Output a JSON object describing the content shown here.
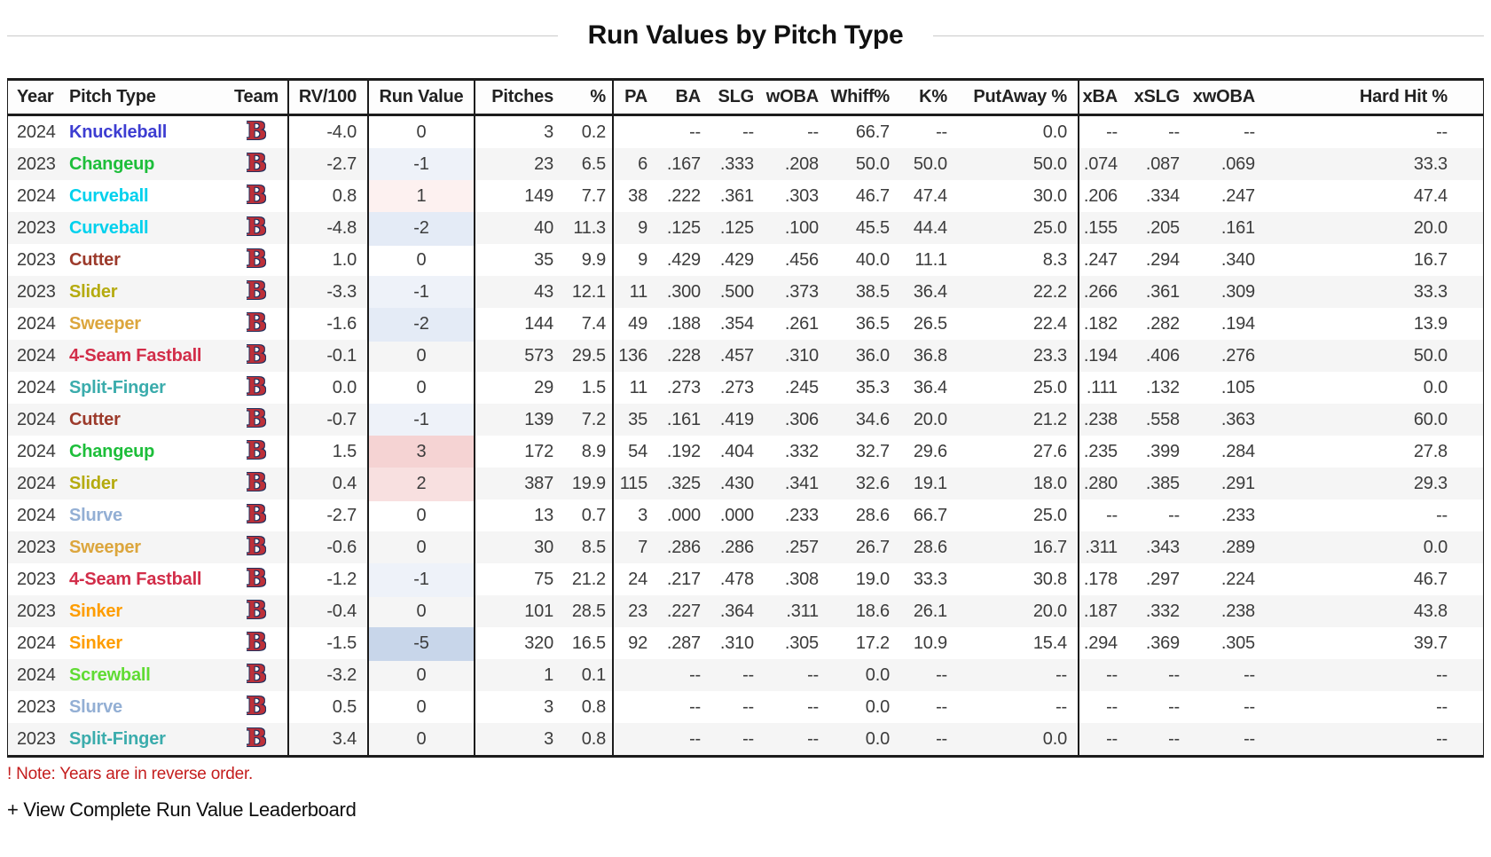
{
  "title": "Run Values by Pitch Type",
  "note": "! Note: Years are in reverse order.",
  "view_link": "+ View Complete Run Value Leaderboard",
  "team": {
    "name": "Boston Red Sox",
    "logo_letter": "B"
  },
  "pitch_colors": {
    "Knuckleball": "#3d3dd1",
    "Changeup": "#1dbe3a",
    "Curveball": "#00d1ed",
    "Cutter": "#9c3a2b",
    "Slider": "#b5ab0f",
    "Sweeper": "#dca63d",
    "4-Seam Fastball": "#d22d49",
    "Split-Finger": "#3bacac",
    "Slurve": "#93afd4",
    "Sinker": "#fe9d00",
    "Screwball": "#60db33"
  },
  "run_value_colors": {
    "-5": "#c8d6ea",
    "-2": "#e4ebf6",
    "-1": "#eef2f9",
    "0": "transparent",
    "1": "#fdf1f0",
    "2": "#f8e0e0",
    "3": "#f5d3d3"
  },
  "table": {
    "headers": [
      "Year",
      "Pitch Type",
      "Team",
      "RV/100",
      "Run Value",
      "Pitches",
      "%",
      "PA",
      "BA",
      "SLG",
      "wOBA",
      "Whiff%",
      "K%",
      "PutAway %",
      "xBA",
      "xSLG",
      "xwOBA",
      "Hard Hit %"
    ],
    "rows": [
      {
        "year": "2024",
        "pitch": "Knuckleball",
        "rv100": "-4.0",
        "run_value": "0",
        "pitches": "3",
        "pct": "0.2",
        "pa": "",
        "ba": "--",
        "slg": "--",
        "woba": "--",
        "whiff": "66.7",
        "k": "--",
        "putaway": "0.0",
        "xba": "--",
        "xslg": "--",
        "xwoba": "--",
        "hardhit": "--"
      },
      {
        "year": "2023",
        "pitch": "Changeup",
        "rv100": "-2.7",
        "run_value": "-1",
        "pitches": "23",
        "pct": "6.5",
        "pa": "6",
        "ba": ".167",
        "slg": ".333",
        "woba": ".208",
        "whiff": "50.0",
        "k": "50.0",
        "putaway": "50.0",
        "xba": ".074",
        "xslg": ".087",
        "xwoba": ".069",
        "hardhit": "33.3"
      },
      {
        "year": "2024",
        "pitch": "Curveball",
        "rv100": "0.8",
        "run_value": "1",
        "pitches": "149",
        "pct": "7.7",
        "pa": "38",
        "ba": ".222",
        "slg": ".361",
        "woba": ".303",
        "whiff": "46.7",
        "k": "47.4",
        "putaway": "30.0",
        "xba": ".206",
        "xslg": ".334",
        "xwoba": ".247",
        "hardhit": "47.4"
      },
      {
        "year": "2023",
        "pitch": "Curveball",
        "rv100": "-4.8",
        "run_value": "-2",
        "pitches": "40",
        "pct": "11.3",
        "pa": "9",
        "ba": ".125",
        "slg": ".125",
        "woba": ".100",
        "whiff": "45.5",
        "k": "44.4",
        "putaway": "25.0",
        "xba": ".155",
        "xslg": ".205",
        "xwoba": ".161",
        "hardhit": "20.0"
      },
      {
        "year": "2023",
        "pitch": "Cutter",
        "rv100": "1.0",
        "run_value": "0",
        "pitches": "35",
        "pct": "9.9",
        "pa": "9",
        "ba": ".429",
        "slg": ".429",
        "woba": ".456",
        "whiff": "40.0",
        "k": "11.1",
        "putaway": "8.3",
        "xba": ".247",
        "xslg": ".294",
        "xwoba": ".340",
        "hardhit": "16.7"
      },
      {
        "year": "2023",
        "pitch": "Slider",
        "rv100": "-3.3",
        "run_value": "-1",
        "pitches": "43",
        "pct": "12.1",
        "pa": "11",
        "ba": ".300",
        "slg": ".500",
        "woba": ".373",
        "whiff": "38.5",
        "k": "36.4",
        "putaway": "22.2",
        "xba": ".266",
        "xslg": ".361",
        "xwoba": ".309",
        "hardhit": "33.3"
      },
      {
        "year": "2024",
        "pitch": "Sweeper",
        "rv100": "-1.6",
        "run_value": "-2",
        "pitches": "144",
        "pct": "7.4",
        "pa": "49",
        "ba": ".188",
        "slg": ".354",
        "woba": ".261",
        "whiff": "36.5",
        "k": "26.5",
        "putaway": "22.4",
        "xba": ".182",
        "xslg": ".282",
        "xwoba": ".194",
        "hardhit": "13.9"
      },
      {
        "year": "2024",
        "pitch": "4-Seam Fastball",
        "rv100": "-0.1",
        "run_value": "0",
        "pitches": "573",
        "pct": "29.5",
        "pa": "136",
        "ba": ".228",
        "slg": ".457",
        "woba": ".310",
        "whiff": "36.0",
        "k": "36.8",
        "putaway": "23.3",
        "xba": ".194",
        "xslg": ".406",
        "xwoba": ".276",
        "hardhit": "50.0"
      },
      {
        "year": "2024",
        "pitch": "Split-Finger",
        "rv100": "0.0",
        "run_value": "0",
        "pitches": "29",
        "pct": "1.5",
        "pa": "11",
        "ba": ".273",
        "slg": ".273",
        "woba": ".245",
        "whiff": "35.3",
        "k": "36.4",
        "putaway": "25.0",
        "xba": ".111",
        "xslg": ".132",
        "xwoba": ".105",
        "hardhit": "0.0"
      },
      {
        "year": "2024",
        "pitch": "Cutter",
        "rv100": "-0.7",
        "run_value": "-1",
        "pitches": "139",
        "pct": "7.2",
        "pa": "35",
        "ba": ".161",
        "slg": ".419",
        "woba": ".306",
        "whiff": "34.6",
        "k": "20.0",
        "putaway": "21.2",
        "xba": ".238",
        "xslg": ".558",
        "xwoba": ".363",
        "hardhit": "60.0"
      },
      {
        "year": "2024",
        "pitch": "Changeup",
        "rv100": "1.5",
        "run_value": "3",
        "pitches": "172",
        "pct": "8.9",
        "pa": "54",
        "ba": ".192",
        "slg": ".404",
        "woba": ".332",
        "whiff": "32.7",
        "k": "29.6",
        "putaway": "27.6",
        "xba": ".235",
        "xslg": ".399",
        "xwoba": ".284",
        "hardhit": "27.8"
      },
      {
        "year": "2024",
        "pitch": "Slider",
        "rv100": "0.4",
        "run_value": "2",
        "pitches": "387",
        "pct": "19.9",
        "pa": "115",
        "ba": ".325",
        "slg": ".430",
        "woba": ".341",
        "whiff": "32.6",
        "k": "19.1",
        "putaway": "18.0",
        "xba": ".280",
        "xslg": ".385",
        "xwoba": ".291",
        "hardhit": "29.3"
      },
      {
        "year": "2024",
        "pitch": "Slurve",
        "rv100": "-2.7",
        "run_value": "0",
        "pitches": "13",
        "pct": "0.7",
        "pa": "3",
        "ba": ".000",
        "slg": ".000",
        "woba": ".233",
        "whiff": "28.6",
        "k": "66.7",
        "putaway": "25.0",
        "xba": "--",
        "xslg": "--",
        "xwoba": ".233",
        "hardhit": "--"
      },
      {
        "year": "2023",
        "pitch": "Sweeper",
        "rv100": "-0.6",
        "run_value": "0",
        "pitches": "30",
        "pct": "8.5",
        "pa": "7",
        "ba": ".286",
        "slg": ".286",
        "woba": ".257",
        "whiff": "26.7",
        "k": "28.6",
        "putaway": "16.7",
        "xba": ".311",
        "xslg": ".343",
        "xwoba": ".289",
        "hardhit": "0.0"
      },
      {
        "year": "2023",
        "pitch": "4-Seam Fastball",
        "rv100": "-1.2",
        "run_value": "-1",
        "pitches": "75",
        "pct": "21.2",
        "pa": "24",
        "ba": ".217",
        "slg": ".478",
        "woba": ".308",
        "whiff": "19.0",
        "k": "33.3",
        "putaway": "30.8",
        "xba": ".178",
        "xslg": ".297",
        "xwoba": ".224",
        "hardhit": "46.7"
      },
      {
        "year": "2023",
        "pitch": "Sinker",
        "rv100": "-0.4",
        "run_value": "0",
        "pitches": "101",
        "pct": "28.5",
        "pa": "23",
        "ba": ".227",
        "slg": ".364",
        "woba": ".311",
        "whiff": "18.6",
        "k": "26.1",
        "putaway": "20.0",
        "xba": ".187",
        "xslg": ".332",
        "xwoba": ".238",
        "hardhit": "43.8"
      },
      {
        "year": "2024",
        "pitch": "Sinker",
        "rv100": "-1.5",
        "run_value": "-5",
        "pitches": "320",
        "pct": "16.5",
        "pa": "92",
        "ba": ".287",
        "slg": ".310",
        "woba": ".305",
        "whiff": "17.2",
        "k": "10.9",
        "putaway": "15.4",
        "xba": ".294",
        "xslg": ".369",
        "xwoba": ".305",
        "hardhit": "39.7"
      },
      {
        "year": "2024",
        "pitch": "Screwball",
        "rv100": "-3.2",
        "run_value": "0",
        "pitches": "1",
        "pct": "0.1",
        "pa": "",
        "ba": "--",
        "slg": "--",
        "woba": "--",
        "whiff": "0.0",
        "k": "--",
        "putaway": "--",
        "xba": "--",
        "xslg": "--",
        "xwoba": "--",
        "hardhit": "--"
      },
      {
        "year": "2023",
        "pitch": "Slurve",
        "rv100": "0.5",
        "run_value": "0",
        "pitches": "3",
        "pct": "0.8",
        "pa": "",
        "ba": "--",
        "slg": "--",
        "woba": "--",
        "whiff": "0.0",
        "k": "--",
        "putaway": "--",
        "xba": "--",
        "xslg": "--",
        "xwoba": "--",
        "hardhit": "--"
      },
      {
        "year": "2023",
        "pitch": "Split-Finger",
        "rv100": "3.4",
        "run_value": "0",
        "pitches": "3",
        "pct": "0.8",
        "pa": "",
        "ba": "--",
        "slg": "--",
        "woba": "--",
        "whiff": "0.0",
        "k": "--",
        "putaway": "0.0",
        "xba": "--",
        "xslg": "--",
        "xwoba": "--",
        "hardhit": "--"
      }
    ]
  }
}
